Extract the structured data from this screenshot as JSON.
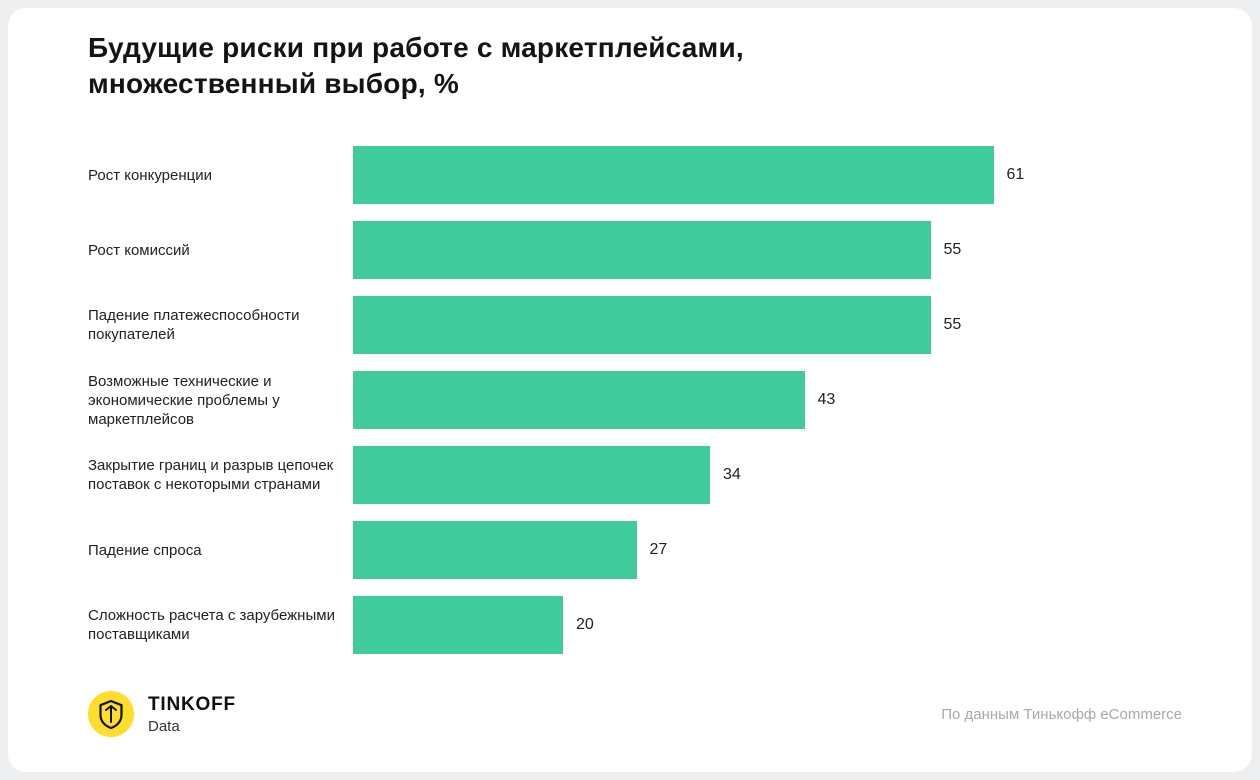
{
  "chart_data": {
    "type": "bar",
    "orientation": "horizontal",
    "title": "Будущие риски при работе с маркетплейсами, множественный выбор, %",
    "categories": [
      "Рост конкуренции",
      "Рост комиссий",
      "Падение платежеспособности покупателей",
      "Возможные технические и экономические проблемы у маркетплейсов",
      "Закрытие границ и разрыв цепочек поставок с некоторыми странами",
      "Падение спроса",
      "Сложность расчета с зарубежными поставщиками"
    ],
    "values": [
      61,
      55,
      55,
      43,
      34,
      27,
      20
    ],
    "xlim": [
      0,
      65
    ],
    "bar_color": "#3fcb9c",
    "value_labels_shown": true,
    "grid": false,
    "legend": false
  },
  "footer": {
    "brand_name": "TINKOFF",
    "brand_sub": "Data",
    "source": "По данным Тинькофф eCommerce",
    "logo_color": "#FFDD2D"
  }
}
